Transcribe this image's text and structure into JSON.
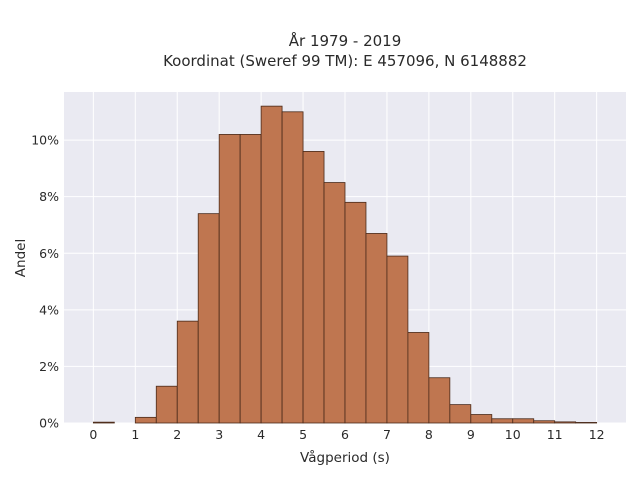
{
  "chart_data": {
    "type": "bar",
    "title": "År 1979 - 2019",
    "subtitle": "Koordinat (Sweref 99 TM): E 457096, N 6148882",
    "xlabel": "Vågperiod (s)",
    "ylabel": "Andel",
    "xlim": [
      -0.7,
      12.7
    ],
    "ylim": [
      0,
      11.7
    ],
    "x_ticks": [
      0,
      1,
      2,
      3,
      4,
      5,
      6,
      7,
      8,
      9,
      10,
      11,
      12
    ],
    "y_ticks": [
      0,
      2,
      4,
      6,
      8,
      10
    ],
    "y_tick_labels": [
      "0%",
      "2%",
      "4%",
      "6%",
      "8%",
      "10%"
    ],
    "bin_width": 0.5,
    "bins": [
      {
        "start": 0.0,
        "value": 0.03
      },
      {
        "start": 0.5,
        "value": 0.0
      },
      {
        "start": 1.0,
        "value": 0.2
      },
      {
        "start": 1.5,
        "value": 1.3
      },
      {
        "start": 2.0,
        "value": 3.6
      },
      {
        "start": 2.5,
        "value": 7.4
      },
      {
        "start": 3.0,
        "value": 10.2
      },
      {
        "start": 3.5,
        "value": 10.2
      },
      {
        "start": 4.0,
        "value": 11.2
      },
      {
        "start": 4.5,
        "value": 11.0
      },
      {
        "start": 5.0,
        "value": 9.6
      },
      {
        "start": 5.5,
        "value": 8.5
      },
      {
        "start": 6.0,
        "value": 7.8
      },
      {
        "start": 6.5,
        "value": 6.7
      },
      {
        "start": 7.0,
        "value": 5.9
      },
      {
        "start": 7.5,
        "value": 3.2
      },
      {
        "start": 8.0,
        "value": 1.6
      },
      {
        "start": 8.5,
        "value": 0.65
      },
      {
        "start": 9.0,
        "value": 0.3
      },
      {
        "start": 9.5,
        "value": 0.15
      },
      {
        "start": 10.0,
        "value": 0.15
      },
      {
        "start": 10.5,
        "value": 0.08
      },
      {
        "start": 11.0,
        "value": 0.04
      },
      {
        "start": 11.5,
        "value": 0.02
      }
    ],
    "grid": true,
    "colors": {
      "bar_fill": "#bf7650",
      "bar_stroke": "#4a2a1a",
      "plot_background": "#eaeaf2",
      "grid": "#ffffff"
    }
  }
}
